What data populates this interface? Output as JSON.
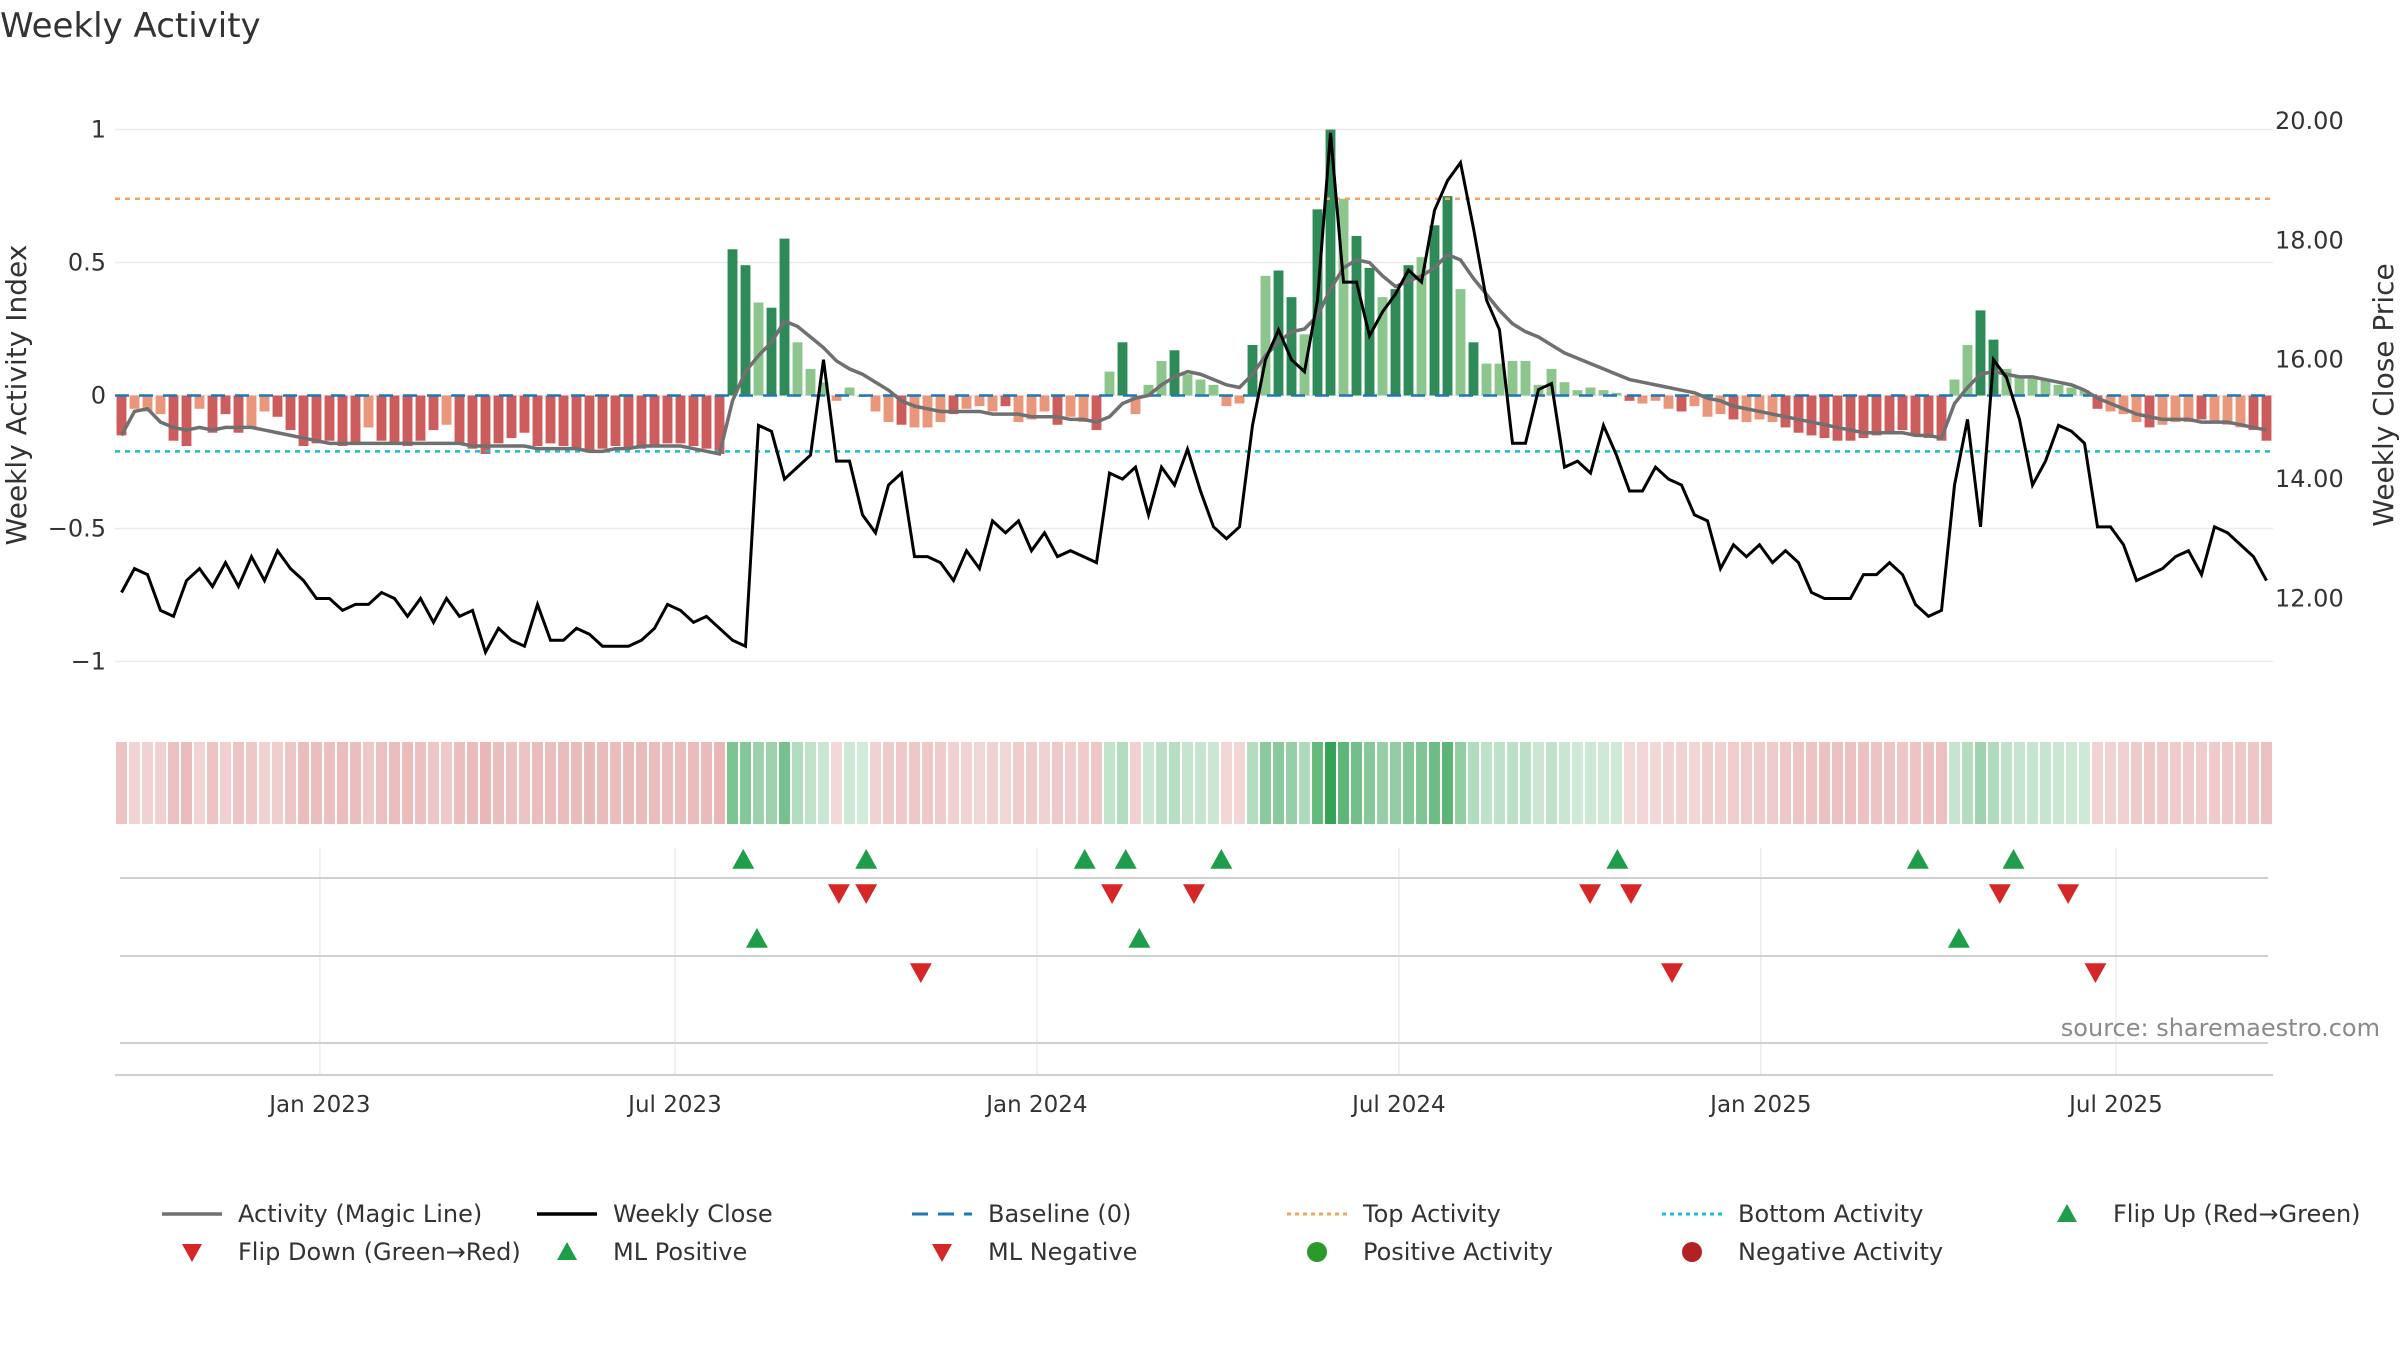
{
  "title": "Weekly Activity",
  "source": "source: sharemaestro.com",
  "colors": {
    "strong_green": "#2e8b57",
    "light_green": "#8cc68c",
    "strong_red": "#cd5c5c",
    "light_red": "#e9967a",
    "magic_line": "#707070",
    "close_line": "#000000",
    "baseline": "#1f77b4",
    "top_line": "#f4a460",
    "bottom_line": "#17becf",
    "up_marker": "#1e9e4a",
    "down_marker": "#d62728"
  },
  "chart_data": {
    "type": "bar",
    "title": "Weekly Activity",
    "ylabel_left": "Weekly Activity Index",
    "ylabel_right": "Weekly Close Price",
    "ylim_left": [
      -1.1,
      1.1
    ],
    "yticks_left": [
      {
        "v": 1,
        "label": "1"
      },
      {
        "v": 0.5,
        "label": "0.5"
      },
      {
        "v": 0,
        "label": "0"
      },
      {
        "v": -0.5,
        "label": "−0.5"
      },
      {
        "v": -1,
        "label": "−1"
      }
    ],
    "ylim_right": [
      10.5,
      20.3
    ],
    "yticks_right": [
      {
        "v": 20,
        "label": "20.00"
      },
      {
        "v": 18,
        "label": "18.00"
      },
      {
        "v": 16,
        "label": "16.00"
      },
      {
        "v": 14,
        "label": "14.00"
      },
      {
        "v": 12,
        "label": "12.00"
      }
    ],
    "x_range": [
      0,
      158
    ],
    "xticks": [
      {
        "w": 15,
        "label": "Jan 2023"
      },
      {
        "w": 41,
        "label": "Jul 2023"
      },
      {
        "w": 67.5,
        "label": "Jan 2024"
      },
      {
        "w": 94,
        "label": "Jul 2024"
      },
      {
        "w": 120.5,
        "label": "Jan 2025"
      },
      {
        "w": 146.5,
        "label": "Jul 2025"
      }
    ],
    "top_activity": 0.74,
    "bottom_activity": -0.21,
    "activity": [
      -0.15,
      -0.05,
      -0.06,
      -0.07,
      -0.17,
      -0.19,
      -0.05,
      -0.14,
      -0.07,
      -0.14,
      -0.12,
      -0.06,
      -0.08,
      -0.13,
      -0.19,
      -0.18,
      -0.17,
      -0.19,
      -0.18,
      -0.12,
      -0.17,
      -0.18,
      -0.19,
      -0.17,
      -0.13,
      -0.11,
      -0.18,
      -0.2,
      -0.22,
      -0.18,
      -0.16,
      -0.14,
      -0.19,
      -0.18,
      -0.19,
      -0.2,
      -0.21,
      -0.2,
      -0.19,
      -0.2,
      -0.2,
      -0.19,
      -0.18,
      -0.18,
      -0.19,
      -0.2,
      -0.22,
      0.55,
      0.49,
      0.35,
      0.33,
      0.59,
      0.2,
      0.1,
      0.05,
      -0.02,
      0.03,
      0.0,
      -0.06,
      -0.1,
      -0.11,
      -0.12,
      -0.12,
      -0.1,
      -0.07,
      -0.05,
      -0.04,
      -0.06,
      -0.04,
      -0.1,
      -0.09,
      -0.06,
      -0.11,
      -0.08,
      -0.1,
      -0.13,
      0.09,
      0.2,
      -0.07,
      0.04,
      0.13,
      0.17,
      0.08,
      0.06,
      0.04,
      -0.04,
      -0.03,
      0.19,
      0.45,
      0.47,
      0.37,
      0.23,
      0.7,
      1.0,
      0.74,
      0.6,
      0.48,
      0.37,
      0.4,
      0.49,
      0.52,
      0.64,
      0.75,
      0.4,
      0.2,
      0.12,
      0.12,
      0.13,
      0.13,
      0.04,
      0.1,
      0.05,
      0.02,
      0.03,
      0.02,
      0.01,
      -0.02,
      -0.03,
      -0.02,
      -0.05,
      -0.06,
      -0.04,
      -0.08,
      -0.07,
      -0.09,
      -0.1,
      -0.09,
      -0.1,
      -0.12,
      -0.14,
      -0.15,
      -0.16,
      -0.17,
      -0.17,
      -0.16,
      -0.15,
      -0.14,
      -0.13,
      -0.15,
      -0.16,
      -0.17,
      0.06,
      0.19,
      0.32,
      0.21,
      0.1,
      0.07,
      0.07,
      0.06,
      0.04,
      0.03,
      0.02,
      -0.05,
      -0.06,
      -0.07,
      -0.1,
      -0.12,
      -0.11,
      -0.1,
      -0.1,
      -0.09,
      -0.1,
      -0.11,
      -0.12,
      -0.13,
      -0.17
    ],
    "magic_line": [
      -0.15,
      -0.06,
      -0.05,
      -0.1,
      -0.12,
      -0.13,
      -0.12,
      -0.13,
      -0.12,
      -0.12,
      -0.12,
      -0.13,
      -0.14,
      -0.15,
      -0.16,
      -0.17,
      -0.18,
      -0.18,
      -0.18,
      -0.18,
      -0.18,
      -0.18,
      -0.18,
      -0.18,
      -0.18,
      -0.18,
      -0.18,
      -0.19,
      -0.19,
      -0.19,
      -0.19,
      -0.19,
      -0.2,
      -0.2,
      -0.2,
      -0.2,
      -0.21,
      -0.21,
      -0.2,
      -0.2,
      -0.19,
      -0.19,
      -0.19,
      -0.19,
      -0.2,
      -0.21,
      -0.22,
      -0.02,
      0.09,
      0.15,
      0.2,
      0.28,
      0.26,
      0.22,
      0.18,
      0.13,
      0.1,
      0.08,
      0.05,
      0.02,
      -0.02,
      -0.04,
      -0.05,
      -0.06,
      -0.06,
      -0.06,
      -0.06,
      -0.07,
      -0.07,
      -0.07,
      -0.08,
      -0.08,
      -0.08,
      -0.09,
      -0.09,
      -0.1,
      -0.08,
      -0.03,
      -0.01,
      0.0,
      0.04,
      0.07,
      0.09,
      0.08,
      0.06,
      0.04,
      0.03,
      0.08,
      0.15,
      0.2,
      0.24,
      0.25,
      0.3,
      0.4,
      0.48,
      0.51,
      0.5,
      0.45,
      0.41,
      0.43,
      0.45,
      0.48,
      0.53,
      0.51,
      0.44,
      0.38,
      0.32,
      0.27,
      0.24,
      0.22,
      0.19,
      0.16,
      0.14,
      0.12,
      0.1,
      0.08,
      0.06,
      0.05,
      0.04,
      0.03,
      0.02,
      0.01,
      -0.01,
      -0.02,
      -0.04,
      -0.05,
      -0.06,
      -0.07,
      -0.08,
      -0.09,
      -0.1,
      -0.11,
      -0.12,
      -0.13,
      -0.14,
      -0.14,
      -0.14,
      -0.14,
      -0.15,
      -0.15,
      -0.16,
      -0.03,
      0.03,
      0.08,
      0.09,
      0.08,
      0.07,
      0.07,
      0.06,
      0.05,
      0.04,
      0.02,
      -0.01,
      -0.03,
      -0.05,
      -0.07,
      -0.08,
      -0.09,
      -0.09,
      -0.09,
      -0.1,
      -0.1,
      -0.1,
      -0.11,
      -0.12,
      -0.13
    ],
    "close": [
      12.1,
      12.5,
      12.4,
      11.8,
      11.7,
      12.3,
      12.5,
      12.2,
      12.6,
      12.2,
      12.7,
      12.3,
      12.8,
      12.5,
      12.3,
      12.0,
      12.0,
      11.8,
      11.9,
      11.9,
      12.1,
      12.0,
      11.7,
      12.0,
      11.6,
      12.0,
      11.7,
      11.8,
      11.1,
      11.5,
      11.3,
      11.2,
      11.9,
      11.3,
      11.3,
      11.5,
      11.4,
      11.2,
      11.2,
      11.2,
      11.3,
      11.5,
      11.9,
      11.8,
      11.6,
      11.7,
      11.5,
      11.3,
      11.2,
      14.9,
      14.8,
      14.0,
      14.2,
      14.4,
      16.0,
      14.3,
      14.3,
      13.4,
      13.1,
      13.9,
      14.1,
      12.7,
      12.7,
      12.6,
      12.3,
      12.8,
      12.5,
      13.3,
      13.1,
      13.3,
      12.8,
      13.1,
      12.7,
      12.8,
      12.7,
      12.6,
      14.1,
      14.0,
      14.2,
      13.4,
      14.2,
      13.9,
      14.5,
      13.8,
      13.2,
      13.0,
      13.2,
      14.9,
      16.0,
      16.5,
      16.0,
      15.8,
      17.0,
      19.8,
      17.3,
      17.3,
      16.4,
      16.8,
      17.1,
      17.5,
      17.3,
      18.5,
      19.0,
      19.3,
      18.2,
      17.0,
      16.5,
      14.6,
      14.6,
      15.5,
      15.6,
      14.2,
      14.3,
      14.1,
      14.9,
      14.4,
      13.8,
      13.8,
      14.2,
      14.0,
      13.9,
      13.4,
      13.3,
      12.5,
      12.9,
      12.7,
      12.9,
      12.6,
      12.8,
      12.6,
      12.1,
      12.0,
      12.0,
      12.0,
      12.4,
      12.4,
      12.6,
      12.4,
      11.9,
      11.7,
      11.8,
      13.9,
      15.0,
      13.2,
      16.0,
      15.7,
      15.0,
      13.9,
      14.3,
      14.9,
      14.8,
      14.6,
      13.2,
      13.2,
      12.9,
      12.3,
      12.4,
      12.5,
      12.7,
      12.8,
      12.4,
      13.2,
      13.1,
      12.9,
      12.7,
      12.3
    ],
    "flip_up": [
      46,
      55,
      71,
      74,
      81,
      110,
      132,
      139
    ],
    "flip_down": [
      53,
      55,
      73,
      79,
      108,
      111,
      138,
      143
    ],
    "ml_positive": [
      47,
      75,
      135
    ],
    "ml_negative": [
      59,
      114,
      145
    ]
  },
  "legend": [
    {
      "label": "Activity (Magic Line)",
      "sym": "line-gray"
    },
    {
      "label": "Weekly Close",
      "sym": "line-black"
    },
    {
      "label": "Baseline (0)",
      "sym": "dash-blue"
    },
    {
      "label": "Top Activity",
      "sym": "dot-orange"
    },
    {
      "label": "Bottom Activity",
      "sym": "dot-cyan"
    },
    {
      "label": "Flip Up (Red→Green)",
      "sym": "tri-up"
    },
    {
      "label": "Flip Down (Green→Red)",
      "sym": "tri-down"
    },
    {
      "label": "ML Positive",
      "sym": "tri-up"
    },
    {
      "label": "ML Negative",
      "sym": "tri-down"
    },
    {
      "label": "Positive Activity",
      "sym": "circle-green"
    },
    {
      "label": "Negative Activity",
      "sym": "circle-red"
    }
  ]
}
